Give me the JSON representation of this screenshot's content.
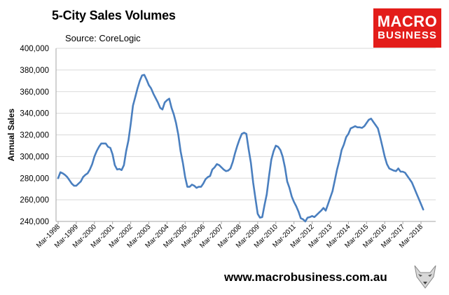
{
  "header": {
    "title": "5-City Sales Volumes",
    "source": "Source: CoreLogic"
  },
  "logo": {
    "line1": "MACRO",
    "line2": "BUSINESS",
    "color": "#e31d1a"
  },
  "footer": {
    "url": "www.macrobusiness.com.au"
  },
  "chart_data": {
    "type": "line",
    "title": "5-City Sales Volumes",
    "xlabel": "",
    "ylabel": "Annual Sales",
    "ylim": [
      240000,
      400000
    ],
    "yticks": [
      240000,
      260000,
      280000,
      300000,
      320000,
      340000,
      360000,
      380000,
      400000
    ],
    "ytick_labels": [
      "240,000",
      "260,000",
      "280,000",
      "300,000",
      "320,000",
      "340,000",
      "360,000",
      "380,000",
      "400,000"
    ],
    "xtick_labels": [
      "Mar-1998",
      "Mar-1999",
      "Mar-2000",
      "Mar-2001",
      "Mar-2002",
      "Mar-2003",
      "Mar-2004",
      "Mar-2005",
      "Mar-2006",
      "Mar-2007",
      "Mar-2008",
      "Mar-2009",
      "Mar-2010",
      "Mar-2011",
      "Mar-2012",
      "Mar-2013",
      "Mar-2014",
      "Mar-2015",
      "Mar-2016",
      "Mar-2017",
      "Mar-2018"
    ],
    "x_start": "1998-03",
    "color": "#4a7fbf",
    "grid": "horizontal",
    "series": [
      {
        "values": [
          280000,
          285500,
          284500,
          283000,
          281000,
          278000,
          275000,
          273000,
          273000,
          275000,
          277000,
          281000,
          283000,
          284500,
          288000,
          293000,
          300000,
          305000,
          309000,
          312000,
          312000,
          312000,
          309000,
          308000,
          302000,
          292000,
          288000,
          288500,
          287500,
          292000,
          305000,
          315000,
          330000,
          347000,
          355000,
          363000,
          370000,
          375000,
          375500,
          371000,
          366000,
          363000,
          358000,
          354000,
          350000,
          345000,
          343500,
          350000,
          352000,
          353500,
          345000,
          339000,
          331000,
          320000,
          305000,
          294000,
          281000,
          272000,
          272000,
          274000,
          273000,
          271000,
          272000,
          272000,
          275000,
          279000,
          281000,
          282000,
          288000,
          290000,
          293000,
          292000,
          290000,
          288000,
          286500,
          287000,
          289000,
          295000,
          303000,
          310000,
          316000,
          321000,
          322000,
          321000,
          307000,
          294000,
          276000,
          261000,
          247000,
          243500,
          244000,
          255000,
          265000,
          282000,
          297000,
          305000,
          310000,
          309000,
          306000,
          300000,
          290000,
          277000,
          271000,
          263000,
          258000,
          254000,
          249000,
          243000,
          242000,
          240000,
          243500,
          244000,
          245000,
          244000,
          246000,
          248000,
          250000,
          252500,
          250000,
          256000,
          262000,
          268000,
          278000,
          288000,
          296000,
          306000,
          311000,
          318000,
          321000,
          326000,
          327000,
          328000,
          327000,
          327000,
          326500,
          328000,
          331000,
          334000,
          335000,
          332000,
          329000,
          326000,
          318000,
          309000,
          300000,
          293000,
          289000,
          288000,
          287000,
          286500,
          289000,
          286000,
          286000,
          285000,
          282000,
          279000,
          276000,
          271000,
          266000,
          261000,
          256000,
          251000
        ],
        "months_per_point": 1.5
      }
    ]
  }
}
